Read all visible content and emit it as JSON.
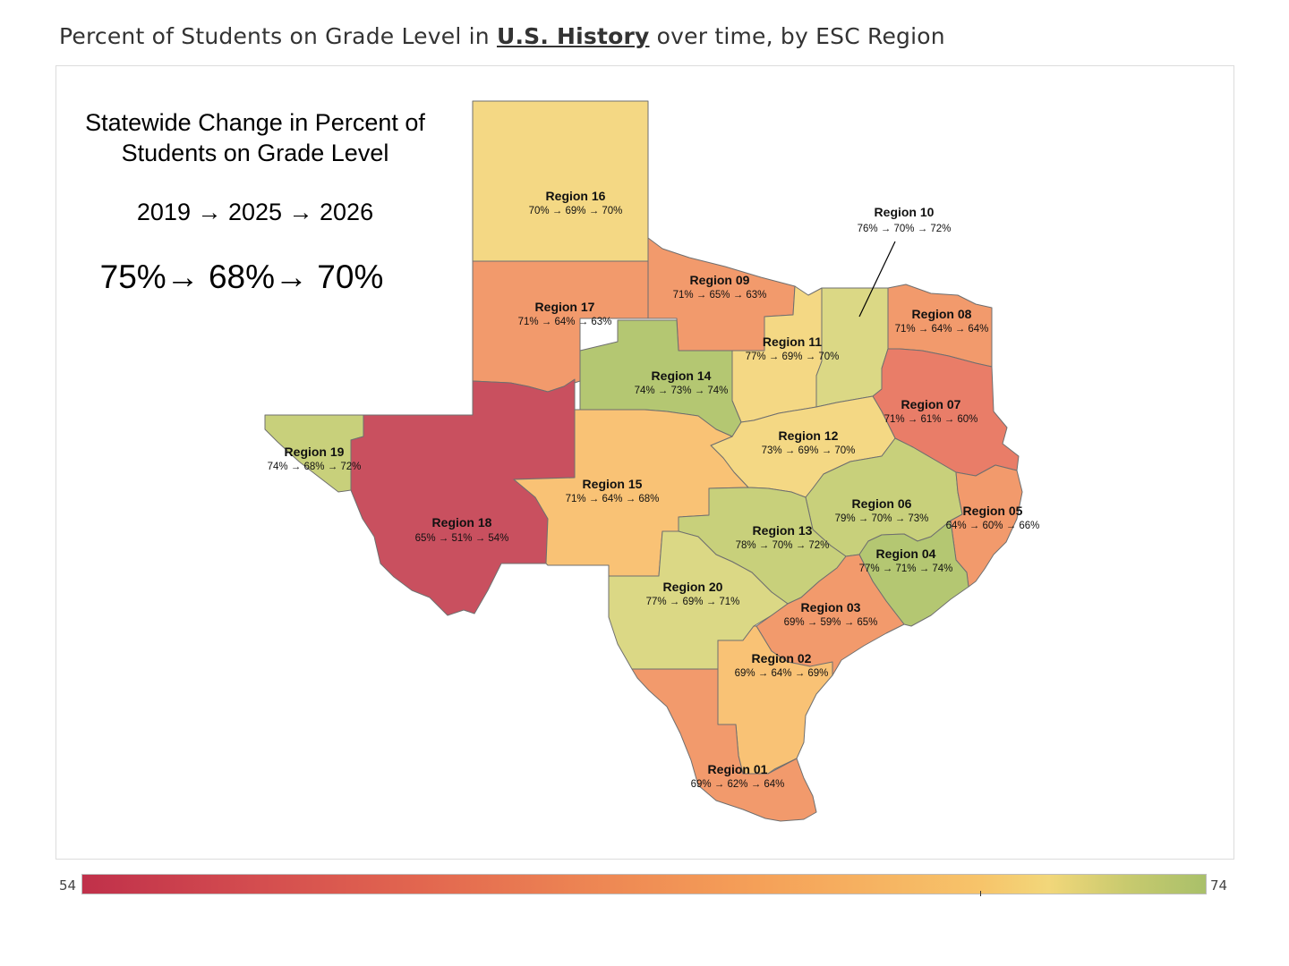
{
  "title": {
    "prefix": "Percent of Students on Grade Level in ",
    "subject": "U.S. History",
    "suffix": " over time, by ESC Region"
  },
  "statewide": {
    "heading_line1": "Statewide Change in Percent of",
    "heading_line2": "Students on Grade Level",
    "years": "2019 → 2025 → 2026",
    "values": "75%→  68%→ 70%"
  },
  "legend": {
    "min": "54",
    "max": "74"
  },
  "colors": {
    "red": "#c9505f",
    "red_orange": "#e97d68",
    "orange": "#f29a6c",
    "light_orange": "#f9c275",
    "yellow": "#f4d884",
    "khaki": "#dbd885",
    "yellow_green": "#c8d07b",
    "green": "#b4c772"
  },
  "regions": [
    {
      "id": "16",
      "name": "Region 16",
      "values": "70% → 69% → 70%"
    },
    {
      "id": "17",
      "name": "Region 17",
      "values": "71% → 64% → 63%"
    },
    {
      "id": "09",
      "name": "Region 09",
      "values": "71% → 65% → 63%"
    },
    {
      "id": "10",
      "name": "Region 10",
      "values": "76% → 70% → 72%"
    },
    {
      "id": "08",
      "name": "Region 08",
      "values": "71% → 64% → 64%"
    },
    {
      "id": "11",
      "name": "Region 11",
      "values": "77% → 69% → 70%"
    },
    {
      "id": "14",
      "name": "Region 14",
      "values": "74% → 73% → 74%"
    },
    {
      "id": "07",
      "name": "Region 07",
      "values": "71% → 61% → 60%"
    },
    {
      "id": "12",
      "name": "Region 12",
      "values": "73% → 69% → 70%"
    },
    {
      "id": "19",
      "name": "Region 19",
      "values": "74% → 68% → 72%"
    },
    {
      "id": "15",
      "name": "Region 15",
      "values": "71% → 64% → 68%"
    },
    {
      "id": "06",
      "name": "Region 06",
      "values": "79% → 70% → 73%"
    },
    {
      "id": "05",
      "name": "Region 05",
      "values": "64% → 60% → 66%"
    },
    {
      "id": "18",
      "name": "Region 18",
      "values": "65% → 51% → 54%"
    },
    {
      "id": "13",
      "name": "Region 13",
      "values": "78% → 70% → 72%"
    },
    {
      "id": "04",
      "name": "Region 04",
      "values": "77% → 71% → 74%"
    },
    {
      "id": "20",
      "name": "Region 20",
      "values": "77% → 69% → 71%"
    },
    {
      "id": "03",
      "name": "Region 03",
      "values": "69% → 59% → 65%"
    },
    {
      "id": "02",
      "name": "Region 02",
      "values": "69% → 64% → 69%"
    },
    {
      "id": "01",
      "name": "Region 01",
      "values": "69% → 62% → 64%"
    }
  ]
}
